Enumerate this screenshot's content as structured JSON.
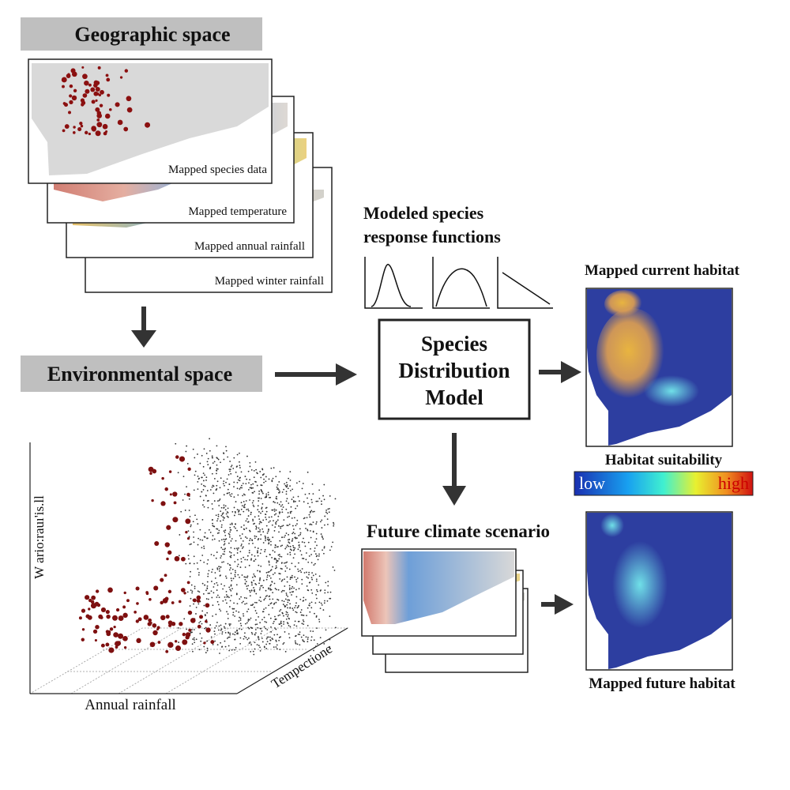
{
  "header": {
    "geographic": "Geographic space",
    "environmental": "Environmental space"
  },
  "geo_layers": [
    "Mapped species data",
    "Mapped temperature",
    "Mapped annual rainfall",
    "Mapped winter rainfall"
  ],
  "response_functions": {
    "title": [
      "Modeled species",
      "response functions"
    ]
  },
  "model": {
    "label": [
      "Species",
      "Distribution",
      "Model"
    ]
  },
  "current_habitat": {
    "title": "Mapped current habitat"
  },
  "suitability": {
    "title": "Habitat suitability",
    "low": "low",
    "high": "high"
  },
  "future": {
    "title": "Future climate scenario",
    "habitat_title": "Mapped future habitat"
  },
  "env_plot": {
    "y_label": "W ario:rauı'is.ll",
    "x_label": "Annual rainfall",
    "z_label": "Tempectione"
  }
}
